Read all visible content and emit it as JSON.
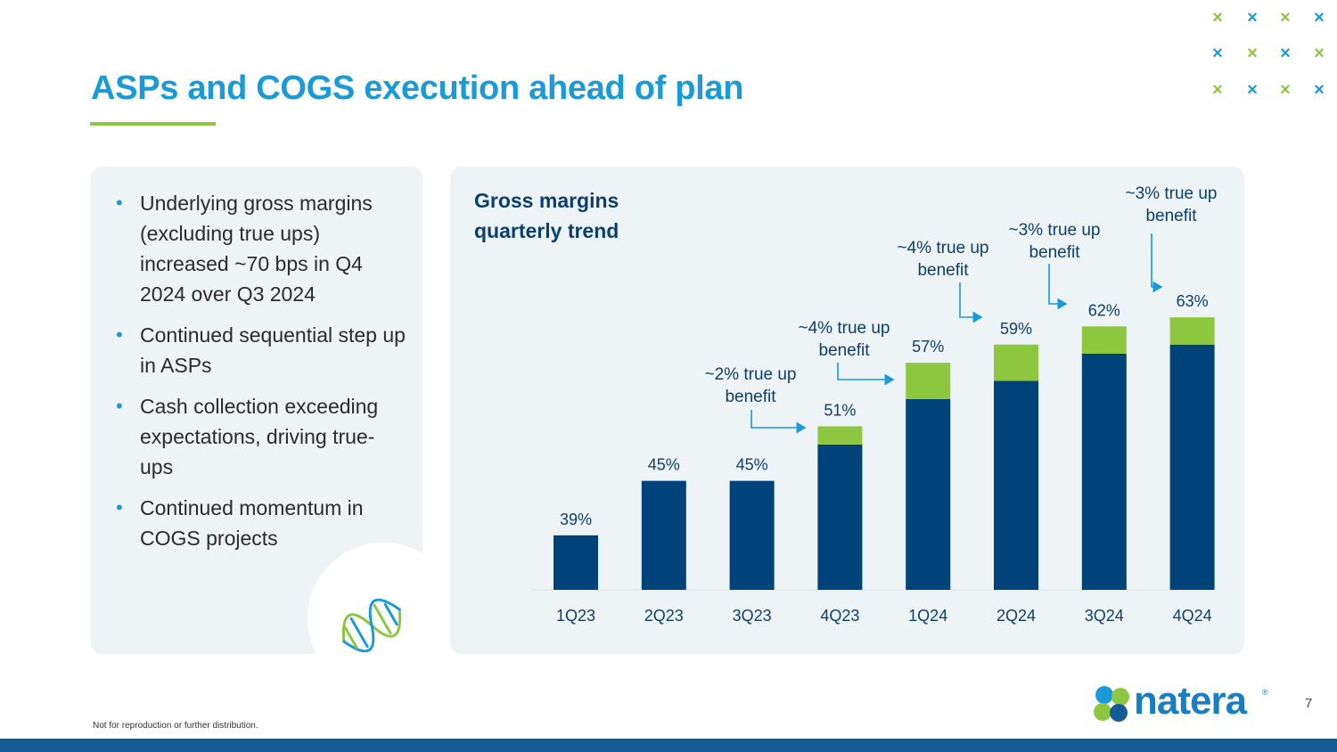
{
  "slide": {
    "title": "ASPs and COGS execution ahead of plan",
    "footer_note": "Not for reproduction or further distribution.",
    "page_number": "7",
    "logo_text": "natera",
    "logo_mark": "®"
  },
  "bullets": [
    "Underlying gross margins (excluding true ups) increased ~70 bps in Q4 2024 over Q3 2024",
    "Continued sequential step up in ASPs",
    "Cash collection exceeding expectations, driving true-ups",
    "Continued momentum in COGS projects"
  ],
  "colors": {
    "title_blue": "#1a9ad6",
    "accent_green": "#8dc63f",
    "bar_navy": "#00427a",
    "true_up_green": "#8dc63f",
    "arrow_blue": "#1a9ad6"
  },
  "icons": [
    "dna-icon",
    "x-pattern-decoration"
  ],
  "chart_data": {
    "type": "bar",
    "title": "Gross margins quarterly trend",
    "categories": [
      "1Q23",
      "2Q23",
      "3Q23",
      "4Q23",
      "1Q24",
      "2Q24",
      "3Q24",
      "4Q24"
    ],
    "series": [
      {
        "name": "",
        "values": [
          39,
          45,
          45,
          49,
          54,
          56,
          59,
          60
        ]
      },
      {
        "name": "",
        "values": [
          0,
          0,
          0,
          2,
          4,
          4,
          3,
          3
        ]
      }
    ],
    "totals_labels": [
      "39%",
      "45%",
      "45%",
      "51%",
      "57%",
      "59%",
      "62%",
      "63%"
    ],
    "annotations": [
      {
        "category": "4Q23",
        "text_line1": "~2% true up",
        "text_line2": "benefit"
      },
      {
        "category": "1Q24",
        "text_line1": "~4% true up",
        "text_line2": "benefit"
      },
      {
        "category": "2Q24",
        "text_line1": "~4% true up",
        "text_line2": "benefit"
      },
      {
        "category": "3Q24",
        "text_line1": "~3% true up",
        "text_line2": "benefit"
      },
      {
        "category": "4Q24",
        "text_line1": "~3% true up",
        "text_line2": "benefit"
      }
    ],
    "ylim": [
      33,
      69
    ],
    "grid": false,
    "legend": "none"
  }
}
